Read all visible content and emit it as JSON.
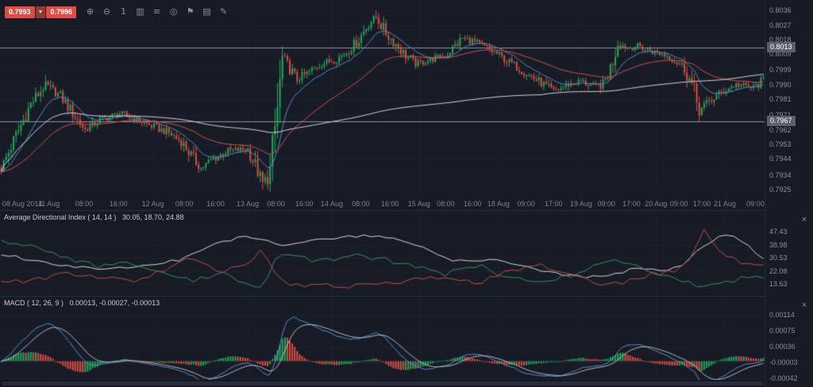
{
  "toolbar": {
    "bid": "0.7993",
    "ask": "0.7996",
    "spread_arrow": "▼",
    "icons": [
      {
        "name": "zoom-in-icon",
        "glyph": "⊕"
      },
      {
        "name": "zoom-out-icon",
        "glyph": "⊖"
      },
      {
        "name": "timeframe-1-icon",
        "glyph": "1"
      },
      {
        "name": "chart-type-icon",
        "glyph": "▥"
      },
      {
        "name": "indicators-icon",
        "glyph": "≡"
      },
      {
        "name": "crosshair-icon",
        "glyph": "◎"
      },
      {
        "name": "flag-icon",
        "glyph": "⚑"
      },
      {
        "name": "layout-icon",
        "glyph": "▤"
      },
      {
        "name": "draw-icon",
        "glyph": "✎"
      }
    ]
  },
  "ui": {
    "close_glyph": "×"
  },
  "colors": {
    "bg": "#171b26",
    "grid": "#1e2230",
    "axis_text": "#8b909c",
    "separator": "#2a2f3c",
    "up": "#26a65d",
    "down": "#d94f45",
    "ma_fast": "#5a8ac6",
    "ma_mid": "#cf544b",
    "ma_slow": "#d6d8dd",
    "macd_line": "#5f8fca",
    "macd_signal": "#b7bcc7",
    "alert_line": "#9093a0",
    "badge_bg": "#5c606b",
    "badge_text": "#ffffff",
    "quote_bg": "#d94f45",
    "arrow_chip_bg": "#8f3b34"
  },
  "chart_data": [
    {
      "id": "price",
      "type": "candlestick",
      "n_candles": 310,
      "ylim": [
        0.79195,
        0.80425
      ],
      "y_ticks": [
        "0.8036",
        "0.8027",
        "0.8018",
        "0.8009",
        "0.7999",
        "0.7990",
        "0.7981",
        "0.7971",
        "0.7962",
        "0.7953",
        "0.7944",
        "0.7934",
        "0.7925"
      ],
      "alert_lines": [
        {
          "price": 0.8013,
          "label": "0.8013"
        },
        {
          "price": 0.7967,
          "label": "0.7967"
        }
      ],
      "x_labels": [
        {
          "t": "08 Aug 2014",
          "f": 0.003
        },
        {
          "t": "11 Aug",
          "f": 0.064
        },
        {
          "t": "08:00",
          "f": 0.11
        },
        {
          "t": "16:00",
          "f": 0.155
        },
        {
          "t": "12 Aug",
          "f": 0.2
        },
        {
          "t": "08:00",
          "f": 0.241
        },
        {
          "t": "16:00",
          "f": 0.282
        },
        {
          "t": "13 Aug",
          "f": 0.324
        },
        {
          "t": "08:00",
          "f": 0.361
        },
        {
          "t": "16:00",
          "f": 0.398
        },
        {
          "t": "14 Aug",
          "f": 0.434
        },
        {
          "t": "08:00",
          "f": 0.472
        },
        {
          "t": "16:00",
          "f": 0.51
        },
        {
          "t": "15 Aug",
          "f": 0.548
        },
        {
          "t": "08:00",
          "f": 0.583
        },
        {
          "t": "16:00",
          "f": 0.618
        },
        {
          "t": "18 Aug",
          "f": 0.652
        },
        {
          "t": "09:00",
          "f": 0.688
        },
        {
          "t": "17:00",
          "f": 0.724
        },
        {
          "t": "19 Aug",
          "f": 0.76
        },
        {
          "t": "09:00",
          "f": 0.793
        },
        {
          "t": "17:00",
          "f": 0.826
        },
        {
          "t": "20 Aug",
          "f": 0.858
        },
        {
          "t": "09:00",
          "f": 0.888
        },
        {
          "t": "17:00",
          "f": 0.918
        },
        {
          "t": "21 Aug",
          "f": 0.948
        },
        {
          "t": "09:00",
          "f": 0.988
        }
      ],
      "x_gridlines": [
        0.064,
        0.2,
        0.324,
        0.434,
        0.548,
        0.652,
        0.76,
        0.858,
        0.948
      ],
      "price_waypoints": [
        [
          0,
          0.7938
        ],
        [
          5,
          0.7955
        ],
        [
          12,
          0.7978
        ],
        [
          18,
          0.799
        ],
        [
          24,
          0.7983
        ],
        [
          30,
          0.797
        ],
        [
          34,
          0.7962
        ],
        [
          40,
          0.7968
        ],
        [
          48,
          0.7972
        ],
        [
          55,
          0.7968
        ],
        [
          60,
          0.7965
        ],
        [
          68,
          0.796
        ],
        [
          73,
          0.7955
        ],
        [
          77,
          0.7946
        ],
        [
          81,
          0.7938
        ],
        [
          86,
          0.7944
        ],
        [
          92,
          0.7949
        ],
        [
          100,
          0.795
        ],
        [
          103,
          0.794
        ],
        [
          106,
          0.7929
        ],
        [
          109,
          0.7936
        ],
        [
          112,
          0.7975
        ],
        [
          114,
          0.8006
        ],
        [
          117,
          0.8
        ],
        [
          120,
          0.7993
        ],
        [
          125,
          0.7998
        ],
        [
          130,
          0.8003
        ],
        [
          136,
          0.8006
        ],
        [
          140,
          0.801
        ],
        [
          145,
          0.8018
        ],
        [
          149,
          0.8028
        ],
        [
          152,
          0.8032
        ],
        [
          156,
          0.8022
        ],
        [
          160,
          0.8015
        ],
        [
          164,
          0.8008
        ],
        [
          168,
          0.8003
        ],
        [
          173,
          0.8005
        ],
        [
          180,
          0.8008
        ],
        [
          184,
          0.8014
        ],
        [
          187,
          0.8019
        ],
        [
          191,
          0.8017
        ],
        [
          195,
          0.8014
        ],
        [
          200,
          0.801
        ],
        [
          205,
          0.8005
        ],
        [
          210,
          0.8
        ],
        [
          215,
          0.7995
        ],
        [
          220,
          0.799
        ],
        [
          224,
          0.7986
        ],
        [
          230,
          0.799
        ],
        [
          235,
          0.7992
        ],
        [
          240,
          0.7989
        ],
        [
          244,
          0.799
        ],
        [
          247,
          0.8
        ],
        [
          250,
          0.8016
        ],
        [
          254,
          0.8013
        ],
        [
          258,
          0.8014
        ],
        [
          263,
          0.8011
        ],
        [
          270,
          0.8008
        ],
        [
          274,
          0.8004
        ],
        [
          277,
          0.8
        ],
        [
          280,
          0.799
        ],
        [
          283,
          0.7974
        ],
        [
          286,
          0.7978
        ],
        [
          290,
          0.7983
        ],
        [
          294,
          0.7987
        ],
        [
          298,
          0.799
        ],
        [
          302,
          0.7989
        ],
        [
          305,
          0.7988
        ],
        [
          309,
          0.7993
        ]
      ],
      "wick_extremes": [
        {
          "i": 18,
          "high": 0.7996
        },
        {
          "i": 106,
          "low": 0.7925
        },
        {
          "i": 152,
          "high": 0.8036
        },
        {
          "i": 283,
          "low": 0.7967
        }
      ],
      "overlays": [
        {
          "name": "fast-ma",
          "type": "ema",
          "period": 13,
          "color": "#5a8ac6"
        },
        {
          "name": "mid-ma",
          "type": "ema",
          "period": 45,
          "color": "#cf544b"
        },
        {
          "name": "slow-ma",
          "type": "sma",
          "period": 220,
          "color": "#d6d8dd"
        }
      ]
    },
    {
      "id": "adx",
      "type": "line",
      "title": "Average Directional Index ( 14, 14 )",
      "values_text": "30.05, 18.70, 24.88",
      "ylim": [
        6,
        61
      ],
      "y_ticks": [
        "47.43",
        "38.98",
        "30.53",
        "22.08",
        "13.63"
      ],
      "series": [
        {
          "name": "adx",
          "color": "#d4d7dd",
          "noise": 0.9,
          "waypoints": [
            [
              0,
              33
            ],
            [
              19,
              27
            ],
            [
              39,
              23
            ],
            [
              58,
              25
            ],
            [
              74,
              30
            ],
            [
              87,
              40
            ],
            [
              97,
              44
            ],
            [
              106,
              43
            ],
            [
              116,
              38
            ],
            [
              126,
              42
            ],
            [
              138,
              44
            ],
            [
              151,
              45
            ],
            [
              161,
              43
            ],
            [
              171,
              38
            ],
            [
              180,
              30
            ],
            [
              190,
              28
            ],
            [
              200,
              30
            ],
            [
              209,
              26
            ],
            [
              219,
              22
            ],
            [
              229,
              19
            ],
            [
              238,
              18
            ],
            [
              248,
              20
            ],
            [
              258,
              24
            ],
            [
              267,
              22
            ],
            [
              277,
              26
            ],
            [
              283,
              36
            ],
            [
              290,
              44
            ],
            [
              296,
              45
            ],
            [
              303,
              38
            ],
            [
              309,
              30
            ]
          ]
        },
        {
          "name": "plus-di",
          "color": "#3f8e5c",
          "noise": 1.6,
          "waypoints": [
            [
              0,
              42
            ],
            [
              13,
              38
            ],
            [
              26,
              30
            ],
            [
              39,
              25
            ],
            [
              52,
              28
            ],
            [
              64,
              22
            ],
            [
              77,
              16
            ],
            [
              90,
              20
            ],
            [
              100,
              14
            ],
            [
              106,
              10
            ],
            [
              111,
              30
            ],
            [
              116,
              34
            ],
            [
              129,
              28
            ],
            [
              142,
              32
            ],
            [
              155,
              30
            ],
            [
              167,
              25
            ],
            [
              180,
              20
            ],
            [
              193,
              26
            ],
            [
              206,
              18
            ],
            [
              219,
              14
            ],
            [
              232,
              20
            ],
            [
              245,
              30
            ],
            [
              254,
              26
            ],
            [
              264,
              22
            ],
            [
              274,
              18
            ],
            [
              283,
              12
            ],
            [
              293,
              15
            ],
            [
              303,
              18
            ],
            [
              309,
              19
            ]
          ]
        },
        {
          "name": "minus-di",
          "color": "#bf4d44",
          "noise": 1.6,
          "waypoints": [
            [
              0,
              14
            ],
            [
              13,
              16
            ],
            [
              26,
              20
            ],
            [
              39,
              18
            ],
            [
              52,
              15
            ],
            [
              64,
              22
            ],
            [
              77,
              30
            ],
            [
              90,
              22
            ],
            [
              100,
              28
            ],
            [
              106,
              36
            ],
            [
              111,
              20
            ],
            [
              116,
              12
            ],
            [
              129,
              14
            ],
            [
              142,
              12
            ],
            [
              155,
              14
            ],
            [
              167,
              16
            ],
            [
              180,
              18
            ],
            [
              193,
              14
            ],
            [
              206,
              22
            ],
            [
              219,
              26
            ],
            [
              232,
              20
            ],
            [
              245,
              12
            ],
            [
              254,
              16
            ],
            [
              264,
              20
            ],
            [
              274,
              22
            ],
            [
              281,
              34
            ],
            [
              285,
              48
            ],
            [
              290,
              38
            ],
            [
              296,
              30
            ],
            [
              303,
              26
            ],
            [
              309,
              25
            ]
          ]
        }
      ]
    },
    {
      "id": "macd",
      "type": "macd",
      "title": "MACD ( 12, 26, 9 )",
      "values_text": "0.00013, -0.00027, -0.00013",
      "params": {
        "fast": 12,
        "slow": 26,
        "signal": 9
      },
      "scale": 0.72,
      "ylim": [
        -0.00046,
        0.00159
      ],
      "y_ticks": [
        "0.00114",
        "0.00075",
        "0.00036",
        "-0.00003",
        "-0.00042"
      ]
    }
  ]
}
